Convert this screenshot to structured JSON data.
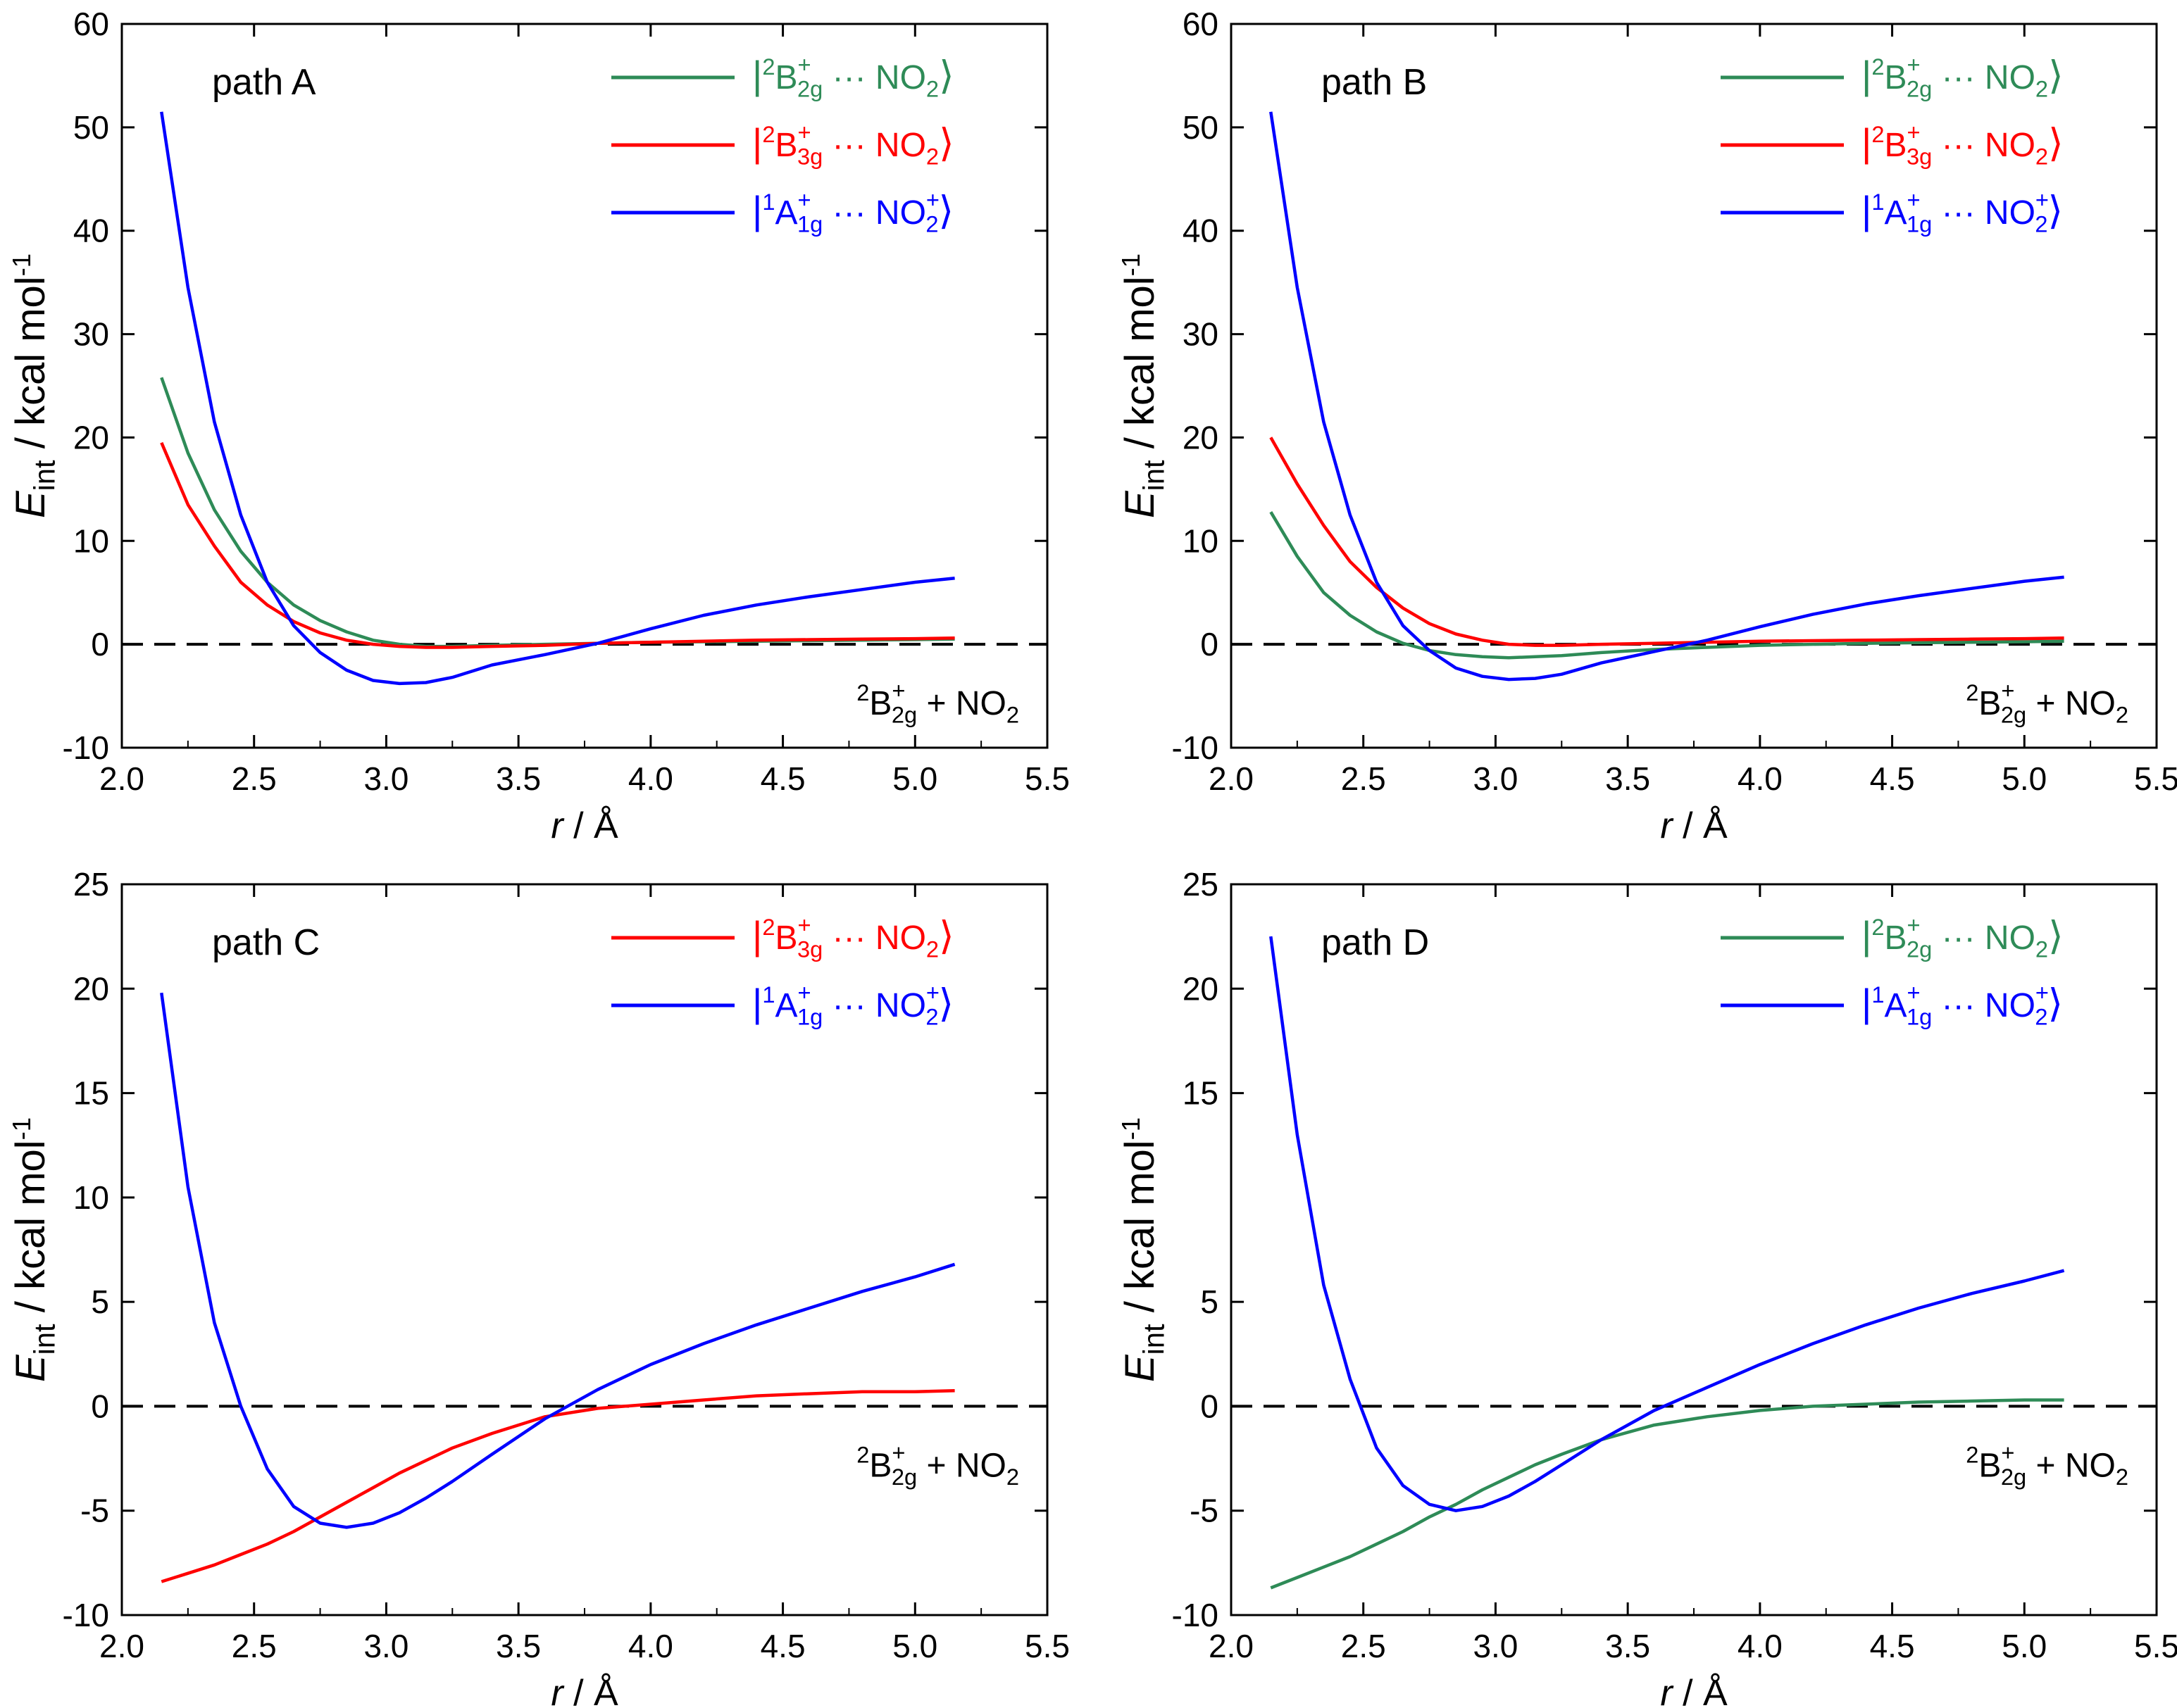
{
  "figure": {
    "curve_colors": {
      "green": "#2e8b57",
      "red": "#ff0000",
      "blue": "#0000ff",
      "axis": "#000000"
    }
  },
  "labels": {
    "ket_open": "|",
    "ket_close": "⟩",
    "dots": "···",
    "plus": "+",
    "B2g": {
      "sup": "2",
      "base": "B",
      "sub": "2g",
      "sub_sup": "+",
      "partner": "NO",
      "partner_sub": "2",
      "partner_sup": ""
    },
    "B3g": {
      "sup": "2",
      "base": "B",
      "sub": "3g",
      "sub_sup": "+",
      "partner": "NO",
      "partner_sub": "2",
      "partner_sup": ""
    },
    "A1g": {
      "sup": "1",
      "base": "A",
      "sub": "1g",
      "sub_sup": "+",
      "partner": "NO",
      "partner_sub": "2",
      "partner_sup": "+"
    },
    "asymptote": {
      "sup": "2",
      "base": "B",
      "sub": "2g",
      "sub_sup": "+",
      "plus": "+",
      "partner": "NO",
      "partner_sub": "2"
    }
  },
  "chart_data": [
    {
      "type": "line",
      "title": "path A",
      "xlabel": "r / Å",
      "ylabel": "E_int / kcal mol^-1",
      "ylabel_parts": {
        "E": "E",
        "sub": "int",
        "unit": " / kcal mol",
        "unit_sup": "-1"
      },
      "xlabel_parts": {
        "r": "r",
        "unit": " / Å"
      },
      "xlim": [
        2.0,
        5.5
      ],
      "ylim": [
        -10,
        60
      ],
      "xticks": [
        "2.0",
        "2.5",
        "3.0",
        "3.5",
        "4.0",
        "4.5",
        "5.0",
        "5.5"
      ],
      "yticks": [
        "-10",
        "0",
        "10",
        "20",
        "30",
        "40",
        "50",
        "60"
      ],
      "zero_line": 0,
      "legend": "top-right",
      "series": [
        {
          "name": "|2B2g+ ··· NO2⟩",
          "label_key": "B2g",
          "color": "green",
          "x": [
            2.15,
            2.25,
            2.35,
            2.45,
            2.55,
            2.65,
            2.75,
            2.85,
            2.95,
            3.05,
            3.15,
            3.25,
            3.4,
            3.6,
            3.8,
            4.0,
            4.2,
            4.4,
            4.6,
            4.8,
            5.0,
            5.15
          ],
          "y": [
            25.8,
            18.5,
            13.0,
            9.0,
            6.0,
            3.8,
            2.3,
            1.2,
            0.4,
            0.0,
            -0.2,
            -0.2,
            -0.1,
            0.0,
            0.1,
            0.2,
            0.25,
            0.3,
            0.35,
            0.4,
            0.45,
            0.5
          ]
        },
        {
          "name": "|2B3g+ ··· NO2⟩",
          "label_key": "B3g",
          "color": "red",
          "x": [
            2.15,
            2.25,
            2.35,
            2.45,
            2.55,
            2.65,
            2.75,
            2.85,
            2.95,
            3.05,
            3.15,
            3.25,
            3.4,
            3.6,
            3.8,
            4.0,
            4.2,
            4.4,
            4.6,
            4.8,
            5.0,
            5.15
          ],
          "y": [
            19.5,
            13.5,
            9.5,
            6.0,
            3.8,
            2.2,
            1.1,
            0.4,
            0.0,
            -0.2,
            -0.3,
            -0.3,
            -0.2,
            -0.1,
            0.1,
            0.2,
            0.3,
            0.4,
            0.45,
            0.5,
            0.55,
            0.6
          ]
        },
        {
          "name": "|1A1g+ ··· NO2+⟩",
          "label_key": "A1g",
          "color": "blue",
          "x": [
            2.15,
            2.25,
            2.35,
            2.45,
            2.55,
            2.65,
            2.75,
            2.85,
            2.95,
            3.05,
            3.15,
            3.25,
            3.4,
            3.6,
            3.8,
            4.0,
            4.2,
            4.4,
            4.6,
            4.8,
            5.0,
            5.15
          ],
          "y": [
            51.5,
            34.5,
            21.5,
            12.5,
            6.0,
            1.8,
            -0.8,
            -2.5,
            -3.5,
            -3.8,
            -3.7,
            -3.2,
            -2.0,
            -1.0,
            0.1,
            1.5,
            2.8,
            3.8,
            4.6,
            5.3,
            6.0,
            6.4
          ]
        }
      ]
    },
    {
      "type": "line",
      "title": "path B",
      "xlabel": "r / Å",
      "ylabel": "E_int / kcal mol^-1",
      "ylabel_parts": {
        "E": "E",
        "sub": "int",
        "unit": " / kcal mol",
        "unit_sup": "-1"
      },
      "xlabel_parts": {
        "r": "r",
        "unit": " / Å"
      },
      "xlim": [
        2.0,
        5.5
      ],
      "ylim": [
        -10,
        60
      ],
      "xticks": [
        "2.0",
        "2.5",
        "3.0",
        "3.5",
        "4.0",
        "4.5",
        "5.0",
        "5.5"
      ],
      "yticks": [
        "-10",
        "0",
        "10",
        "20",
        "30",
        "40",
        "50",
        "60"
      ],
      "zero_line": 0,
      "legend": "top-right",
      "series": [
        {
          "name": "|2B2g+ ··· NO2⟩",
          "label_key": "B2g",
          "color": "green",
          "x": [
            2.15,
            2.25,
            2.35,
            2.45,
            2.55,
            2.65,
            2.75,
            2.85,
            2.95,
            3.05,
            3.15,
            3.25,
            3.4,
            3.6,
            3.8,
            4.0,
            4.2,
            4.4,
            4.6,
            4.8,
            5.0,
            5.15
          ],
          "y": [
            12.8,
            8.5,
            5.0,
            2.8,
            1.2,
            0.1,
            -0.6,
            -1.0,
            -1.2,
            -1.3,
            -1.2,
            -1.1,
            -0.8,
            -0.5,
            -0.3,
            -0.1,
            0.0,
            0.1,
            0.15,
            0.2,
            0.25,
            0.3
          ]
        },
        {
          "name": "|2B3g+ ··· NO2⟩",
          "label_key": "B3g",
          "color": "red",
          "x": [
            2.15,
            2.25,
            2.35,
            2.45,
            2.55,
            2.65,
            2.75,
            2.85,
            2.95,
            3.05,
            3.15,
            3.25,
            3.4,
            3.6,
            3.8,
            4.0,
            4.2,
            4.4,
            4.6,
            4.8,
            5.0,
            5.15
          ],
          "y": [
            20.0,
            15.5,
            11.5,
            8.0,
            5.5,
            3.5,
            2.0,
            1.0,
            0.4,
            0.0,
            -0.1,
            -0.1,
            0.0,
            0.1,
            0.2,
            0.3,
            0.35,
            0.4,
            0.45,
            0.5,
            0.55,
            0.6
          ]
        },
        {
          "name": "|1A1g+ ··· NO2+⟩",
          "label_key": "A1g",
          "color": "blue",
          "x": [
            2.15,
            2.25,
            2.35,
            2.45,
            2.55,
            2.65,
            2.75,
            2.85,
            2.95,
            3.05,
            3.15,
            3.25,
            3.4,
            3.6,
            3.8,
            4.0,
            4.2,
            4.4,
            4.6,
            4.8,
            5.0,
            5.15
          ],
          "y": [
            51.5,
            34.5,
            21.5,
            12.5,
            6.0,
            1.8,
            -0.6,
            -2.3,
            -3.1,
            -3.4,
            -3.3,
            -2.9,
            -1.8,
            -0.7,
            0.4,
            1.7,
            2.9,
            3.9,
            4.7,
            5.4,
            6.1,
            6.5
          ]
        }
      ]
    },
    {
      "type": "line",
      "title": "path C",
      "xlabel": "r / Å",
      "ylabel": "E_int / kcal mol^-1",
      "ylabel_parts": {
        "E": "E",
        "sub": "int",
        "unit": " / kcal mol",
        "unit_sup": "-1"
      },
      "xlabel_parts": {
        "r": "r",
        "unit": " / Å"
      },
      "xlim": [
        2.0,
        5.5
      ],
      "ylim": [
        -10,
        25
      ],
      "xticks": [
        "2.0",
        "2.5",
        "3.0",
        "3.5",
        "4.0",
        "4.5",
        "5.0",
        "5.5"
      ],
      "yticks": [
        "-10",
        "-5",
        "0",
        "5",
        "10",
        "15",
        "20",
        "25"
      ],
      "zero_line": 0,
      "legend": "top-right",
      "series": [
        {
          "name": "|2B3g+ ··· NO2⟩",
          "label_key": "B3g",
          "color": "red",
          "x": [
            2.15,
            2.25,
            2.35,
            2.45,
            2.55,
            2.65,
            2.75,
            2.85,
            2.95,
            3.05,
            3.15,
            3.25,
            3.4,
            3.6,
            3.8,
            4.0,
            4.2,
            4.4,
            4.6,
            4.8,
            5.0,
            5.15
          ],
          "y": [
            -8.4,
            -8.0,
            -7.6,
            -7.1,
            -6.6,
            -6.0,
            -5.3,
            -4.6,
            -3.9,
            -3.2,
            -2.6,
            -2.0,
            -1.3,
            -0.5,
            -0.1,
            0.1,
            0.3,
            0.5,
            0.6,
            0.7,
            0.7,
            0.75
          ]
        },
        {
          "name": "|1A1g+ ··· NO2+⟩",
          "label_key": "A1g",
          "color": "blue",
          "x": [
            2.15,
            2.25,
            2.35,
            2.45,
            2.55,
            2.65,
            2.75,
            2.85,
            2.95,
            3.05,
            3.15,
            3.25,
            3.4,
            3.6,
            3.8,
            4.0,
            4.2,
            4.4,
            4.6,
            4.8,
            5.0,
            5.15
          ],
          "y": [
            19.8,
            10.5,
            4.0,
            0.0,
            -3.0,
            -4.8,
            -5.6,
            -5.8,
            -5.6,
            -5.1,
            -4.4,
            -3.6,
            -2.3,
            -0.6,
            0.8,
            2.0,
            3.0,
            3.9,
            4.7,
            5.5,
            6.2,
            6.8
          ]
        }
      ]
    },
    {
      "type": "line",
      "title": "path D",
      "xlabel": "r / Å",
      "ylabel": "E_int / kcal mol^-1",
      "ylabel_parts": {
        "E": "E",
        "sub": "int",
        "unit": " / kcal mol",
        "unit_sup": "-1"
      },
      "xlabel_parts": {
        "r": "r",
        "unit": " / Å"
      },
      "xlim": [
        2.0,
        5.5
      ],
      "ylim": [
        -10,
        25
      ],
      "xticks": [
        "2.0",
        "2.5",
        "3.0",
        "3.5",
        "4.0",
        "4.5",
        "5.0",
        "5.5"
      ],
      "yticks": [
        "-10",
        "-5",
        "0",
        "5",
        "15",
        "20",
        "25"
      ],
      "zero_line": 0,
      "legend": "top-right",
      "series": [
        {
          "name": "|2B2g+ ··· NO2⟩",
          "label_key": "B2g",
          "color": "green",
          "x": [
            2.15,
            2.25,
            2.35,
            2.45,
            2.55,
            2.65,
            2.75,
            2.85,
            2.95,
            3.05,
            3.15,
            3.25,
            3.4,
            3.6,
            3.8,
            4.0,
            4.2,
            4.4,
            4.6,
            4.8,
            5.0,
            5.15
          ],
          "y": [
            -8.7,
            -8.2,
            -7.7,
            -7.2,
            -6.6,
            -6.0,
            -5.3,
            -4.7,
            -4.0,
            -3.4,
            -2.8,
            -2.3,
            -1.6,
            -0.9,
            -0.5,
            -0.2,
            0.0,
            0.1,
            0.2,
            0.25,
            0.3,
            0.3
          ]
        },
        {
          "name": "|1A1g+ ··· NO2+⟩",
          "label_key": "A1g",
          "color": "blue",
          "x": [
            2.15,
            2.25,
            2.35,
            2.45,
            2.55,
            2.65,
            2.75,
            2.85,
            2.95,
            3.05,
            3.15,
            3.25,
            3.4,
            3.6,
            3.8,
            4.0,
            4.2,
            4.4,
            4.6,
            4.8,
            5.0,
            5.15
          ],
          "y": [
            22.5,
            13.0,
            5.8,
            1.3,
            -2.0,
            -3.8,
            -4.7,
            -5.0,
            -4.8,
            -4.3,
            -3.6,
            -2.8,
            -1.6,
            -0.2,
            0.9,
            2.0,
            3.0,
            3.9,
            4.7,
            5.4,
            6.0,
            6.5
          ]
        }
      ]
    }
  ]
}
